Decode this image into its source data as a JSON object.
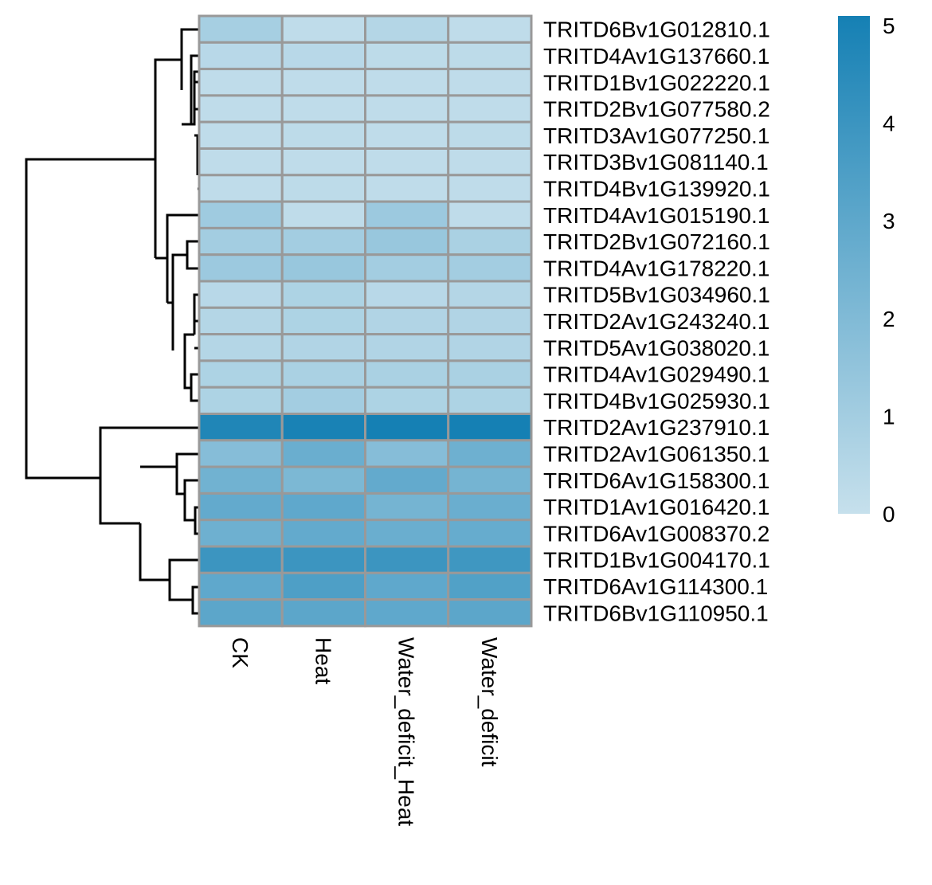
{
  "chart_data": {
    "type": "heatmap",
    "title": "",
    "columns": [
      "CK",
      "Heat",
      "Water_deficit_Heat",
      "Water_deficit"
    ],
    "rows": [
      "TRITD6Bv1G012810.1",
      "TRITD4Av1G137660.1",
      "TRITD1Bv1G022220.1",
      "TRITD2Bv1G077580.2",
      "TRITD3Av1G077250.1",
      "TRITD3Bv1G081140.1",
      "TRITD4Bv1G139920.1",
      "TRITD4Av1G015190.1",
      "TRITD2Bv1G072160.1",
      "TRITD4Av1G178220.1",
      "TRITD5Bv1G034960.1",
      "TRITD2Av1G243240.1",
      "TRITD5Av1G038020.1",
      "TRITD4Av1G029490.1",
      "TRITD4Bv1G025930.1",
      "TRITD2Av1G237910.1",
      "TRITD2Av1G061350.1",
      "TRITD6Av1G158300.1",
      "TRITD1Av1G016420.1",
      "TRITD6Av1G008370.2",
      "TRITD1Bv1G004170.1",
      "TRITD6Av1G114300.1",
      "TRITD6Bv1G110950.1"
    ],
    "values": [
      [
        0.9,
        0.2,
        0.5,
        0.2
      ],
      [
        0.4,
        0.4,
        0.25,
        0.25
      ],
      [
        0.2,
        0.2,
        0.2,
        0.2
      ],
      [
        0.2,
        0.2,
        0.2,
        0.2
      ],
      [
        0.2,
        0.25,
        0.2,
        0.25
      ],
      [
        0.2,
        0.2,
        0.2,
        0.2
      ],
      [
        0.2,
        0.25,
        0.2,
        0.2
      ],
      [
        1.1,
        0.2,
        1.2,
        0.2
      ],
      [
        1.0,
        1.0,
        1.3,
        0.8
      ],
      [
        1.2,
        1.3,
        1.0,
        1.0
      ],
      [
        0.4,
        0.7,
        0.4,
        0.5
      ],
      [
        0.5,
        0.7,
        0.6,
        0.6
      ],
      [
        0.5,
        0.6,
        0.6,
        0.6
      ],
      [
        0.7,
        0.8,
        0.8,
        0.8
      ],
      [
        0.7,
        1.0,
        0.7,
        0.7
      ],
      [
        4.7,
        4.9,
        5.1,
        5.0
      ],
      [
        1.8,
        2.6,
        1.8,
        2.5
      ],
      [
        2.4,
        2.1,
        2.8,
        2.3
      ],
      [
        2.8,
        2.9,
        2.3,
        2.6
      ],
      [
        2.5,
        2.8,
        2.6,
        2.7
      ],
      [
        3.9,
        3.9,
        3.9,
        3.8
      ],
      [
        2.9,
        3.4,
        2.9,
        3.3
      ],
      [
        3.0,
        3.0,
        2.9,
        3.0
      ]
    ],
    "color_scale": {
      "min": 0,
      "max": 5,
      "low_color": "#c6e0ec",
      "high_color": "#1580b4"
    },
    "legend": {
      "ticks": [
        0,
        1,
        2,
        3,
        4,
        5
      ],
      "placement": "right"
    },
    "cell_border_color": "#999999",
    "row_dendrogram": true
  }
}
